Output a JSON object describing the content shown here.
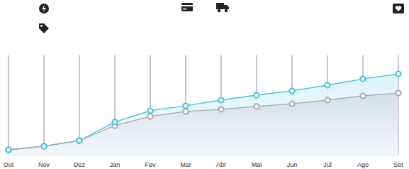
{
  "chart_data": {
    "type": "line",
    "categories": [
      "Out",
      "Nov",
      "Dez",
      "Jan",
      "Fev",
      "Mar",
      "Abr",
      "Mai",
      "Jun",
      "Jul",
      "Ago",
      "Set"
    ],
    "series": [
      {
        "color": "#3fc1dc",
        "marker": "circle",
        "values": [
          5,
          8.6,
          14.3,
          32.9,
          44.3,
          49.3,
          55,
          60,
          64.3,
          70,
          76.4,
          81.4
        ]
      },
      {
        "color": "#a9a9a9",
        "marker": "circle",
        "values": [
          5,
          8.6,
          14.3,
          29.3,
          38.6,
          43.6,
          45.7,
          48.6,
          51.4,
          55,
          59.3,
          62.1
        ]
      }
    ],
    "ylim": [
      0,
      100
    ],
    "grid": true,
    "tick_labels": "x"
  }
}
